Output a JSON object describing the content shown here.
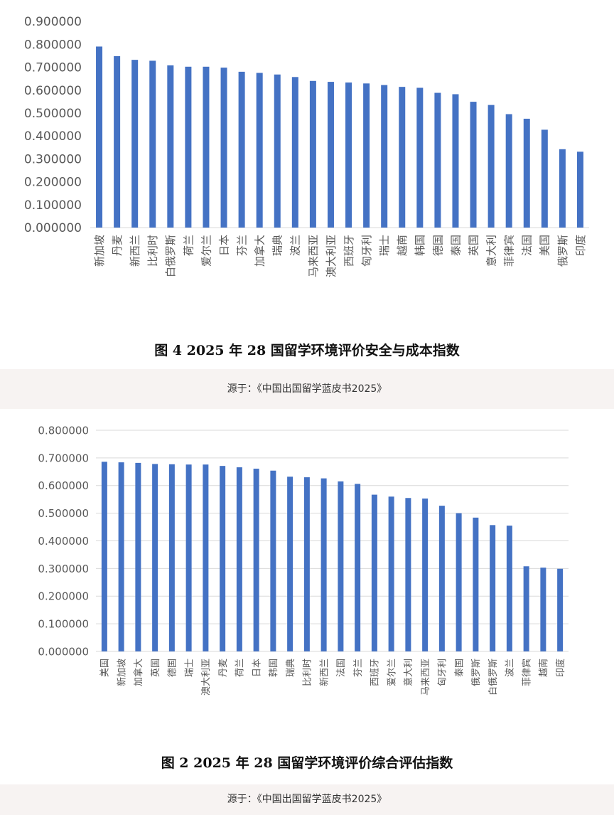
{
  "chart_data": [
    {
      "type": "bar",
      "title": "图 4 2025 年 28 国留学环境评价安全与成本指数",
      "categories": [
        "新加坡",
        "丹麦",
        "新西兰",
        "比利时",
        "白俄罗斯",
        "荷兰",
        "爱尔兰",
        "日本",
        "芬兰",
        "加拿大",
        "瑞典",
        "波兰",
        "马来西亚",
        "澳大利亚",
        "西班牙",
        "匈牙利",
        "瑞士",
        "越南",
        "韩国",
        "德国",
        "泰国",
        "英国",
        "意大利",
        "菲律宾",
        "法国",
        "美国",
        "俄罗斯",
        "印度"
      ],
      "values": [
        0.79,
        0.748,
        0.732,
        0.728,
        0.708,
        0.702,
        0.702,
        0.698,
        0.68,
        0.675,
        0.668,
        0.657,
        0.64,
        0.636,
        0.633,
        0.629,
        0.622,
        0.614,
        0.61,
        0.588,
        0.582,
        0.549,
        0.535,
        0.495,
        0.475,
        0.427,
        0.342,
        0.331
      ],
      "ytick_labels": [
        "0.000000",
        "0.100000",
        "0.200000",
        "0.300000",
        "0.400000",
        "0.500000",
        "0.600000",
        "0.700000",
        "0.800000",
        "0.900000"
      ],
      "ylim": [
        0,
        0.9
      ],
      "grid": false,
      "bar_color": "#4472c4"
    },
    {
      "type": "bar",
      "title": "图 2 2025 年 28 国留学环境评价综合评估指数",
      "categories": [
        "美国",
        "新加坡",
        "加拿大",
        "英国",
        "德国",
        "瑞士",
        "澳大利亚",
        "丹麦",
        "荷兰",
        "日本",
        "韩国",
        "瑞典",
        "比利时",
        "新西兰",
        "法国",
        "芬兰",
        "西班牙",
        "爱尔兰",
        "意大利",
        "马来西亚",
        "匈牙利",
        "泰国",
        "俄罗斯",
        "白俄罗斯",
        "波兰",
        "菲律宾",
        "越南",
        "印度"
      ],
      "values": [
        0.686,
        0.684,
        0.682,
        0.678,
        0.677,
        0.676,
        0.676,
        0.671,
        0.666,
        0.661,
        0.654,
        0.632,
        0.63,
        0.626,
        0.615,
        0.606,
        0.567,
        0.56,
        0.555,
        0.553,
        0.527,
        0.5,
        0.484,
        0.457,
        0.455,
        0.308,
        0.303,
        0.299
      ],
      "ytick_labels": [
        "0.000000",
        "0.100000",
        "0.200000",
        "0.300000",
        "0.400000",
        "0.500000",
        "0.600000",
        "0.700000",
        "0.800000"
      ],
      "ylim": [
        0,
        0.8
      ],
      "grid": true,
      "bar_color": "#4472c4"
    }
  ],
  "source_text": "源于：《中国出国留学蓝皮书2025》"
}
